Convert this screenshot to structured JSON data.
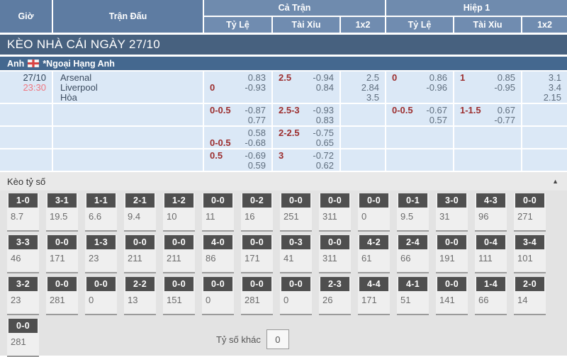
{
  "header": {
    "col_time": "Giờ",
    "col_match": "Trận Đấu",
    "group_full": "Cả Trận",
    "group_half": "Hiệp 1",
    "sub_cols": [
      "Tỷ Lệ",
      "Tài Xỉu",
      "1x2"
    ]
  },
  "banner": {
    "title": "KÈO NHÀ CÁI NGÀY 27/10"
  },
  "league": {
    "country": "Anh",
    "flag_icon": "england-flag",
    "name": "*Ngoại Hạng Anh"
  },
  "match": {
    "date": "27/10",
    "time": "23:30",
    "teams": [
      "Arsenal",
      "Liverpool",
      "Hòa"
    ]
  },
  "odds_rows": [
    {
      "cells": {
        "ft_hdp": [
          {
            "l": "",
            "v": "0.83"
          },
          {
            "l": "0",
            "v": "-0.93"
          }
        ],
        "ft_ou": [
          {
            "l": "2.5",
            "v": "-0.94"
          },
          {
            "l": "",
            "v": "0.84"
          }
        ],
        "ft_1x2": [
          {
            "l": "",
            "v": "2.5"
          },
          {
            "l": "",
            "v": "2.84"
          },
          {
            "l": "",
            "v": "3.5"
          }
        ],
        "h1_hdp": [
          {
            "l": "0",
            "v": "0.86"
          },
          {
            "l": "",
            "v": "-0.96"
          }
        ],
        "h1_ou": [
          {
            "l": "1",
            "v": "0.85"
          },
          {
            "l": "",
            "v": "-0.95"
          }
        ],
        "h1_1x2": [
          {
            "l": "",
            "v": "3.1"
          },
          {
            "l": "",
            "v": "3.4"
          },
          {
            "l": "",
            "v": "2.15"
          }
        ]
      }
    },
    {
      "cells": {
        "ft_hdp": [
          {
            "l": "0-0.5",
            "v": "-0.87"
          },
          {
            "l": "",
            "v": "0.77"
          }
        ],
        "ft_ou": [
          {
            "l": "2.5-3",
            "v": "-0.93"
          },
          {
            "l": "",
            "v": "0.83"
          }
        ],
        "ft_1x2": [],
        "h1_hdp": [
          {
            "l": "0-0.5",
            "v": "-0.67"
          },
          {
            "l": "",
            "v": "0.57"
          }
        ],
        "h1_ou": [
          {
            "l": "1-1.5",
            "v": "0.67"
          },
          {
            "l": "",
            "v": "-0.77"
          }
        ],
        "h1_1x2": []
      }
    },
    {
      "cells": {
        "ft_hdp": [
          {
            "l": "",
            "v": "0.58"
          },
          {
            "l": "0-0.5",
            "v": "-0.68"
          }
        ],
        "ft_ou": [
          {
            "l": "2-2.5",
            "v": "-0.75"
          },
          {
            "l": "",
            "v": "0.65"
          }
        ],
        "ft_1x2": [],
        "h1_hdp": [],
        "h1_ou": [],
        "h1_1x2": []
      }
    },
    {
      "cells": {
        "ft_hdp": [
          {
            "l": "0.5",
            "v": "-0.69"
          },
          {
            "l": "",
            "v": "0.59"
          }
        ],
        "ft_ou": [
          {
            "l": "3",
            "v": "-0.72"
          },
          {
            "l": "",
            "v": "0.62"
          }
        ],
        "ft_1x2": [],
        "h1_hdp": [],
        "h1_ou": [],
        "h1_1x2": []
      }
    }
  ],
  "score_section": {
    "title": "Kèo tỷ số",
    "collapse_icon": "triangle-up",
    "rows": [
      [
        {
          "score": "1-0",
          "odds": "8.7"
        },
        {
          "score": "3-1",
          "odds": "19.5"
        },
        {
          "score": "1-1",
          "odds": "6.6"
        },
        {
          "score": "2-1",
          "odds": "9.4"
        },
        {
          "score": "1-2",
          "odds": "10"
        },
        {
          "score": "0-0",
          "odds": "11"
        },
        {
          "score": "0-2",
          "odds": "16"
        },
        {
          "score": "0-0",
          "odds": "251"
        },
        {
          "score": "0-0",
          "odds": "311"
        },
        {
          "score": "0-0",
          "odds": "0"
        },
        {
          "score": "0-1",
          "odds": "9.5"
        },
        {
          "score": "3-0",
          "odds": "31"
        },
        {
          "score": "4-3",
          "odds": "96"
        },
        {
          "score": "0-0",
          "odds": "271"
        }
      ],
      [
        {
          "score": "3-3",
          "odds": "46"
        },
        {
          "score": "0-0",
          "odds": "171"
        },
        {
          "score": "1-3",
          "odds": "23"
        },
        {
          "score": "0-0",
          "odds": "211"
        },
        {
          "score": "0-0",
          "odds": "211"
        },
        {
          "score": "4-0",
          "odds": "86"
        },
        {
          "score": "0-0",
          "odds": "171"
        },
        {
          "score": "0-3",
          "odds": "41"
        },
        {
          "score": "0-0",
          "odds": "311"
        },
        {
          "score": "4-2",
          "odds": "61"
        },
        {
          "score": "2-4",
          "odds": "66"
        },
        {
          "score": "0-0",
          "odds": "191"
        },
        {
          "score": "0-4",
          "odds": "111"
        },
        {
          "score": "3-4",
          "odds": "101"
        }
      ],
      [
        {
          "score": "3-2",
          "odds": "23"
        },
        {
          "score": "0-0",
          "odds": "281"
        },
        {
          "score": "0-0",
          "odds": "0"
        },
        {
          "score": "2-2",
          "odds": "13"
        },
        {
          "score": "0-0",
          "odds": "151"
        },
        {
          "score": "0-0",
          "odds": "0"
        },
        {
          "score": "0-0",
          "odds": "281"
        },
        {
          "score": "0-0",
          "odds": "0"
        },
        {
          "score": "2-3",
          "odds": "26"
        },
        {
          "score": "4-4",
          "odds": "171"
        },
        {
          "score": "4-1",
          "odds": "51"
        },
        {
          "score": "0-0",
          "odds": "141"
        },
        {
          "score": "1-4",
          "odds": "66"
        },
        {
          "score": "2-0",
          "odds": "14"
        }
      ],
      [
        {
          "score": "0-0",
          "odds": "281"
        }
      ]
    ],
    "other_score_label": "Tỷ số khác",
    "other_score_value": "0"
  },
  "colors": {
    "header_blue": "#5e7ca2",
    "header_blue_light": "#6f8bae",
    "banner_navy": "#47617f",
    "league_blue": "#44688f",
    "row_light_blue": "#dbe8f6",
    "handicap_maroon": "#9c2d2d",
    "time_salmon": "#ef7680",
    "odds_gray_blue": "#5f6e7e",
    "chip_dark": "#4f4f4f",
    "section_gray": "#e3e3e3"
  }
}
